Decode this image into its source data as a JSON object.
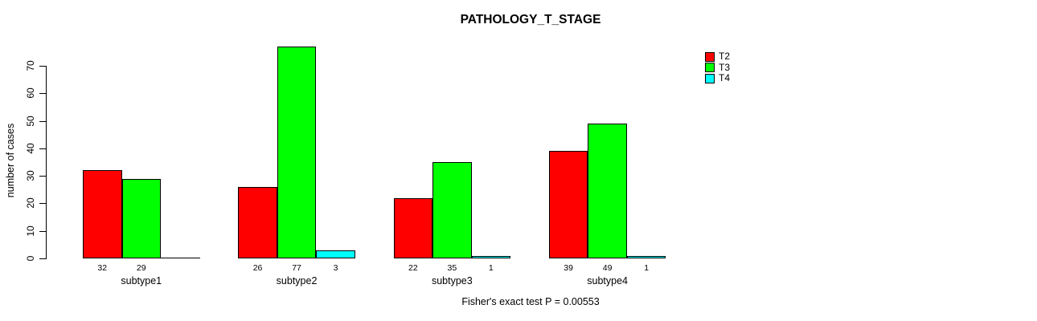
{
  "chart_data": {
    "type": "bar",
    "title": "PATHOLOGY_T_STAGE",
    "ylabel": "number of cases",
    "xlabel": "",
    "ylim": [
      0,
      70
    ],
    "yticks": [
      0,
      10,
      20,
      30,
      40,
      50,
      60,
      70
    ],
    "grid": false,
    "legend_position": "right",
    "categories": [
      "subtype1",
      "subtype2",
      "subtype3",
      "subtype4"
    ],
    "series": [
      {
        "name": "T2",
        "color": "#FF0000",
        "values": [
          32,
          26,
          22,
          39
        ]
      },
      {
        "name": "T3",
        "color": "#00FF00",
        "values": [
          29,
          77,
          35,
          49
        ]
      },
      {
        "name": "T4",
        "color": "#00FFFF",
        "values": [
          0,
          3,
          1,
          1
        ]
      }
    ],
    "bar_value_labels": {
      "subtype1": [
        "32",
        "29",
        ""
      ],
      "subtype2": [
        "26",
        "77",
        "3"
      ],
      "subtype3": [
        "22",
        "35",
        "1"
      ],
      "subtype4": [
        "39",
        "49",
        "1"
      ]
    },
    "annotation": "Fisher's exact test P = 0.00553"
  }
}
